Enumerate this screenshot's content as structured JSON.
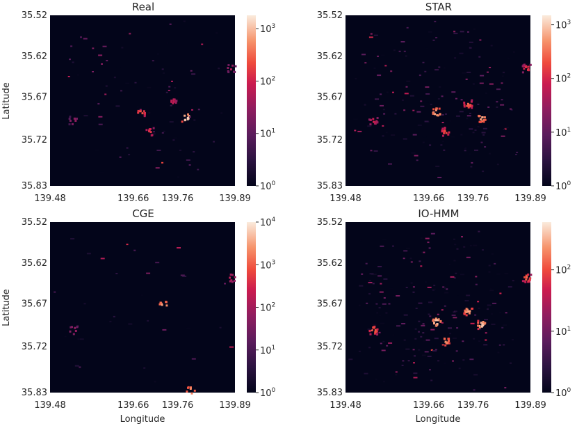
{
  "chart_data": [
    {
      "type": "heatmap",
      "title": "Real",
      "xlabel": "",
      "ylabel": "Latitude",
      "x_ticks": [
        "139.48",
        "139.66",
        "139.76",
        "139.89"
      ],
      "y_ticks": [
        "35.52",
        "35.62",
        "35.67",
        "35.72",
        "35.83"
      ],
      "colorbar": {
        "scale": "log",
        "range": [
          1,
          1800
        ],
        "ticks": [
          "10",
          "10",
          "10",
          "10"
        ],
        "exponents": [
          "0",
          "1",
          "2",
          "3"
        ]
      },
      "hotspots": [
        {
          "lon": 139.78,
          "lat": 35.705,
          "value": 1500
        },
        {
          "lon": 139.68,
          "lat": 35.695,
          "value": 300
        },
        {
          "lon": 139.7,
          "lat": 35.73,
          "value": 150
        },
        {
          "lon": 139.75,
          "lat": 35.675,
          "value": 80
        },
        {
          "lon": 139.88,
          "lat": 35.615,
          "value": 60
        },
        {
          "lon": 139.53,
          "lat": 35.71,
          "value": 40
        }
      ],
      "grid": false
    },
    {
      "type": "heatmap",
      "title": "STAR",
      "xlabel": "",
      "ylabel": "",
      "x_ticks": [
        "139.48",
        "139.66",
        "139.76",
        "139.89"
      ],
      "y_ticks": [
        "35.52",
        "35.62",
        "35.67",
        "35.72",
        "35.83"
      ],
      "colorbar": {
        "scale": "log",
        "range": [
          1,
          1500
        ],
        "ticks": [
          "10",
          "10",
          "10",
          "10"
        ],
        "exponents": [
          "0",
          "1",
          "2",
          "3"
        ]
      },
      "hotspots": [
        {
          "lon": 139.68,
          "lat": 35.695,
          "value": 900
        },
        {
          "lon": 139.78,
          "lat": 35.705,
          "value": 700
        },
        {
          "lon": 139.75,
          "lat": 35.68,
          "value": 300
        },
        {
          "lon": 139.7,
          "lat": 35.73,
          "value": 200
        },
        {
          "lon": 139.88,
          "lat": 35.615,
          "value": 150
        },
        {
          "lon": 139.54,
          "lat": 35.71,
          "value": 100
        }
      ],
      "grid": false
    },
    {
      "type": "heatmap",
      "title": "CGE",
      "xlabel": "",
      "ylabel": "Latitude",
      "x_ticks": [
        "139.48",
        "139.66",
        "139.76",
        "139.89"
      ],
      "y_ticks": [
        "35.52",
        "35.62",
        "35.67",
        "35.72",
        "35.83"
      ],
      "colorbar": {
        "scale": "log",
        "range": [
          1,
          10000
        ],
        "ticks": [
          "10",
          "10",
          "10",
          "10",
          "10"
        ],
        "exponents": [
          "0",
          "1",
          "2",
          "3",
          "4"
        ]
      },
      "hotspots": [
        {
          "lon": 139.73,
          "lat": 35.67,
          "value": 4000
        },
        {
          "lon": 139.79,
          "lat": 35.825,
          "value": 3000
        },
        {
          "lon": 139.88,
          "lat": 35.62,
          "value": 200
        },
        {
          "lon": 139.53,
          "lat": 35.715,
          "value": 100
        }
      ],
      "grid": false
    },
    {
      "type": "heatmap",
      "title": "IO-HMM",
      "xlabel": "Longitude",
      "ylabel": "",
      "x_ticks": [
        "139.48",
        "139.66",
        "139.76",
        "139.89"
      ],
      "y_ticks": [
        "35.52",
        "35.62",
        "35.67",
        "35.72",
        "35.83"
      ],
      "colorbar": {
        "scale": "log",
        "range": [
          1,
          600
        ],
        "ticks": [
          "10",
          "10",
          "10"
        ],
        "exponents": [
          "0",
          "1",
          "2"
        ]
      },
      "hotspots": [
        {
          "lon": 139.68,
          "lat": 35.7,
          "value": 500
        },
        {
          "lon": 139.78,
          "lat": 35.705,
          "value": 450
        },
        {
          "lon": 139.75,
          "lat": 35.68,
          "value": 300
        },
        {
          "lon": 139.7,
          "lat": 35.735,
          "value": 250
        },
        {
          "lon": 139.54,
          "lat": 35.715,
          "value": 150
        },
        {
          "lon": 139.88,
          "lat": 35.62,
          "value": 150
        }
      ],
      "grid": false
    }
  ],
  "shared_xlabel": "Longitude",
  "colors": {
    "background": "#03051a",
    "colormap": "rocket"
  }
}
